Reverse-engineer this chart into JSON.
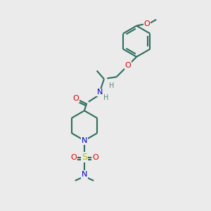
{
  "bg_color": "#ebebeb",
  "bond_color": "#2d6e5e",
  "oxygen_color": "#dd0000",
  "nitrogen_color": "#0000cc",
  "sulfur_color": "#bbbb00",
  "h_color": "#5a8a7a",
  "line_width": 1.5,
  "fig_size": [
    3.0,
    3.0
  ],
  "dpi": 100,
  "xlim": [
    0,
    10
  ],
  "ylim": [
    0,
    10
  ]
}
